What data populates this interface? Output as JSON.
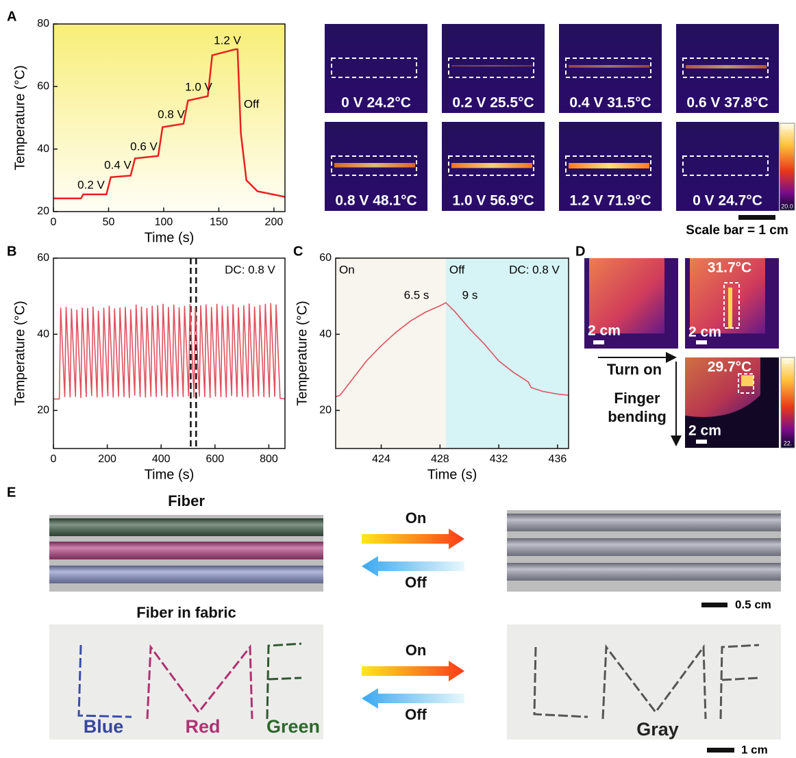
{
  "panel_labels": [
    "A",
    "B",
    "C",
    "D",
    "E"
  ],
  "chart_data": [
    {
      "type": "line",
      "x_label": "Time (s)",
      "y_label": "Temperature (°C)",
      "xlim": [
        0,
        210
      ],
      "ylim": [
        20,
        80
      ],
      "xticks": [
        0,
        50,
        100,
        150,
        200
      ],
      "yticks": [
        20,
        40,
        60,
        80
      ],
      "color": "#e8211f",
      "x": [
        0,
        25,
        27,
        48,
        52,
        70,
        74,
        95,
        99,
        118,
        122,
        140,
        144,
        165,
        167,
        170,
        175,
        185,
        210
      ],
      "values": [
        24.2,
        24.2,
        25.5,
        25.5,
        31,
        31.5,
        37,
        37.8,
        47,
        48.1,
        55.5,
        56.9,
        70,
        71.9,
        71.9,
        45,
        30,
        26.5,
        24.7
      ],
      "annotations": [
        "0.2 V",
        "0.4 V",
        "0.6 V",
        "0.8 V",
        "1.0 V",
        "1.2 V",
        "Off"
      ]
    },
    {
      "type": "line",
      "x_label": "Time (s)",
      "y_label": "Temperature (°C)",
      "xlim": [
        0,
        860
      ],
      "ylim": [
        10,
        60
      ],
      "xticks": [
        0,
        200,
        400,
        600,
        800
      ],
      "yticks": [
        20,
        40,
        60
      ],
      "color": "#e0505e",
      "x": [
        0,
        22,
        27,
        42,
        47,
        62,
        67,
        82,
        87,
        102,
        107,
        122,
        127,
        142,
        147,
        162,
        167,
        182,
        187,
        202,
        207,
        222,
        227,
        242,
        247,
        262,
        267,
        282,
        287,
        302,
        307,
        322,
        327,
        342,
        347,
        362,
        367,
        382,
        387,
        402,
        407,
        422,
        427,
        442,
        447,
        462,
        467,
        482,
        487,
        502,
        507,
        522,
        527,
        542,
        547,
        562,
        567,
        582,
        587,
        602,
        607,
        622,
        627,
        642,
        647,
        662,
        667,
        682,
        687,
        702,
        707,
        722,
        727,
        742,
        747,
        762,
        767,
        782,
        787,
        802,
        807,
        822,
        827,
        842,
        860
      ],
      "values": [
        23,
        23,
        47,
        23.5,
        47.2,
        23.4,
        46.8,
        23.6,
        46.5,
        23.3,
        47,
        23.5,
        46.9,
        23.8,
        47.3,
        23.4,
        46.2,
        23.5,
        47,
        23.7,
        47.5,
        23.4,
        46.8,
        23.6,
        47,
        23.5,
        47.2,
        23.3,
        46.6,
        23.9,
        47.8,
        23.5,
        47.3,
        23.4,
        46.9,
        23.6,
        47.5,
        23.5,
        47.6,
        23.8,
        48,
        23.4,
        47.2,
        23.5,
        47.8,
        23.6,
        47.1,
        23.5,
        47.5,
        23.7,
        47.9,
        23.4,
        47.3,
        23.6,
        47.6,
        23.5,
        47.8,
        23.3,
        47.2,
        23.6,
        48,
        23.5,
        47.5,
        23.4,
        47.4,
        23.8,
        47.9,
        23.5,
        47.1,
        23.6,
        47.6,
        23.4,
        48.1,
        23.5,
        47.3,
        23.7,
        47.7,
        23.5,
        48,
        23.4,
        48.2,
        23.6,
        47.8,
        23.2,
        23
      ],
      "annotations": [
        "DC: 0.8 V"
      ],
      "dashed_lines_x": [
        510,
        530
      ]
    },
    {
      "type": "line",
      "x_label": "Time (s)",
      "y_label": "Temperature (°C)",
      "xlim": [
        420.9,
        436.75
      ],
      "ylim": [
        10,
        60
      ],
      "xticks": [
        424,
        428,
        432,
        436
      ],
      "yticks": [
        20,
        40,
        60
      ],
      "color": "#e0505e",
      "x": [
        420.9,
        421.2,
        422,
        423,
        424,
        425,
        426,
        427,
        428,
        428.4,
        429,
        430,
        431,
        432,
        433,
        434,
        434.2,
        435,
        436,
        436.75
      ],
      "values": [
        23.6,
        24,
        28,
        33,
        37,
        40.5,
        43.5,
        45.8,
        47.5,
        48.3,
        46,
        41.5,
        37.5,
        33,
        30,
        27.5,
        26,
        25,
        24.3,
        24
      ],
      "regions": [
        {
          "label": "On",
          "xlim": [
            420.9,
            428.4
          ],
          "color": "#f7f5ee"
        },
        {
          "label": "Off",
          "xlim": [
            428.4,
            436.75
          ],
          "color": "#d6f3f5"
        }
      ],
      "annotations": [
        "DC: 0.8 V",
        "6.5 s",
        "9 s"
      ]
    }
  ],
  "thermal_images": {
    "captions": [
      "0 V  24.2°C",
      "0.2 V  25.5°C",
      "0.4 V  31.5°C",
      "0.6 V  37.8°C",
      "0.8 V  48.1°C",
      "1.0 V  56.9°C",
      "1.2 V  71.9°C",
      "0 V  24.7°C"
    ],
    "colorbar_labels": [
      "72.0",
      "20.0"
    ],
    "scale_bar": "Scale bar = 1 cm"
  },
  "panel_d": {
    "temperatures": [
      "31.7°C",
      "29.7°C"
    ],
    "scale_labels": [
      "2 cm",
      "2 cm",
      "2 cm"
    ],
    "turn_on": "Turn on",
    "finger_bending": [
      "Finger",
      "bending"
    ],
    "colorbar_labels": [
      "32.",
      "22."
    ]
  },
  "panel_e": {
    "fiber_title": "Fiber",
    "fabric_title": "Fiber in fabric",
    "on": [
      "On",
      "On"
    ],
    "off": [
      "Off",
      "Off"
    ],
    "fiber_scale": "0.5 cm",
    "fabric_scale": "1 cm",
    "colors": [
      "Blue",
      "Red",
      "Green"
    ],
    "gray": "Gray"
  }
}
